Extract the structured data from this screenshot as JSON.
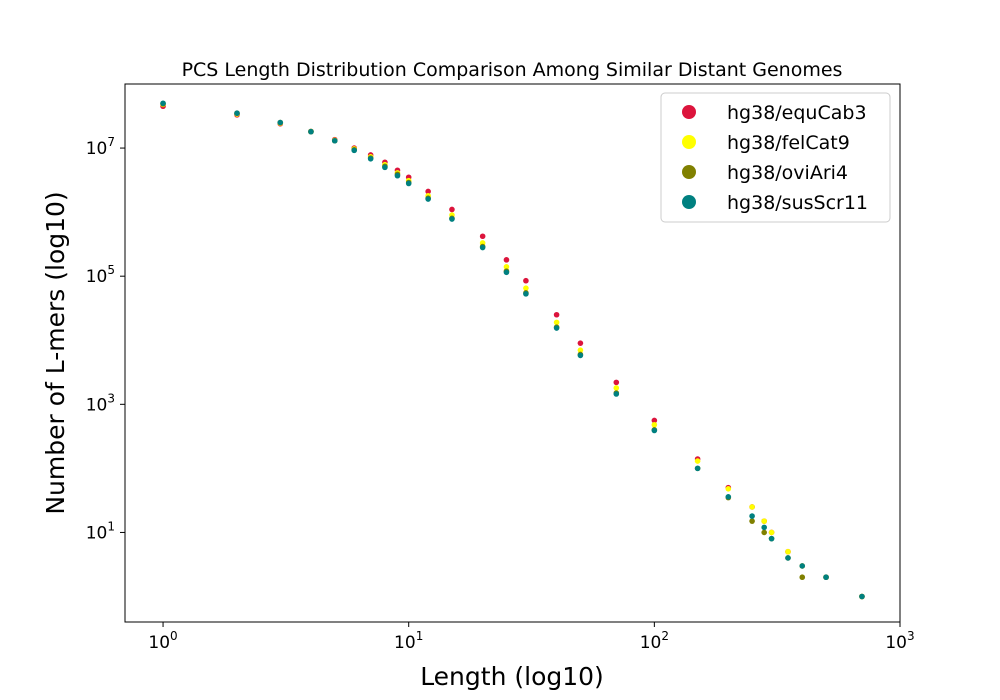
{
  "chart_data": {
    "type": "scatter",
    "title": "PCS Length Distribution Comparison Among Similar Distant Genomes",
    "xlabel": "Length (log10)",
    "ylabel": "Number of L-mers (log10)",
    "xscale": "log",
    "yscale": "log",
    "xlim": [
      0.7,
      1000
    ],
    "ylim": [
      0.4,
      100000000
    ],
    "xticks": [
      {
        "base": "10",
        "exp": "0",
        "value": 1
      },
      {
        "base": "10",
        "exp": "1",
        "value": 10
      },
      {
        "base": "10",
        "exp": "2",
        "value": 100
      },
      {
        "base": "10",
        "exp": "3",
        "value": 1000
      }
    ],
    "yticks": [
      {
        "base": "10",
        "exp": "1",
        "value": 10
      },
      {
        "base": "10",
        "exp": "3",
        "value": 1000
      },
      {
        "base": "10",
        "exp": "5",
        "value": 100000
      },
      {
        "base": "10",
        "exp": "7",
        "value": 10000000
      }
    ],
    "grid": false,
    "legend_position": "top-right",
    "series": [
      {
        "name": "hg38/equCab3",
        "color": "#dc143c",
        "x": [
          1,
          2,
          3,
          4,
          5,
          6,
          7,
          8,
          9,
          10,
          12,
          15,
          20,
          25,
          30,
          40,
          50,
          70,
          100,
          150,
          200,
          250,
          280,
          300,
          350,
          400,
          500,
          700
        ],
        "y": [
          45000000,
          33000000,
          24000000,
          18000000,
          13500000,
          10000000,
          7800000,
          6000000,
          4500000,
          3500000,
          2100000,
          1100000,
          420000,
          180000,
          85000,
          25000,
          9000,
          2200,
          560,
          140,
          50,
          25,
          15,
          10,
          5,
          3,
          2,
          1
        ]
      },
      {
        "name": "hg38/felCat9",
        "color": "#ffff00",
        "x": [
          1,
          2,
          3,
          4,
          5,
          6,
          7,
          8,
          9,
          10,
          12,
          15,
          20,
          25,
          30,
          40,
          50,
          70,
          100,
          150,
          200,
          250,
          280,
          300,
          350,
          400,
          500,
          700
        ],
        "y": [
          48000000,
          34000000,
          24500000,
          18000000,
          13200000,
          9700000,
          7300000,
          5500000,
          4100000,
          3100000,
          1800000,
          900000,
          330000,
          140000,
          65000,
          19000,
          7000,
          1800,
          480,
          130,
          48,
          25,
          15,
          10,
          5,
          3,
          2,
          1
        ]
      },
      {
        "name": "hg38/oviAri4",
        "color": "#808000",
        "x": [
          1,
          2,
          3,
          4,
          5,
          6,
          7,
          8,
          9,
          10,
          12,
          15,
          20,
          25,
          30,
          40,
          50,
          70,
          100,
          150,
          200,
          250,
          280,
          300,
          350,
          400,
          500,
          700
        ],
        "y": [
          49000000,
          35000000,
          25000000,
          18200000,
          13000000,
          9400000,
          7000000,
          5200000,
          3900000,
          2900000,
          1650000,
          800000,
          290000,
          120000,
          55000,
          16000,
          6000,
          1500,
          400,
          100,
          35,
          15,
          10,
          8,
          4,
          2,
          2,
          1
        ]
      },
      {
        "name": "hg38/susScr11",
        "color": "#008080",
        "x": [
          1,
          2,
          3,
          4,
          5,
          6,
          7,
          8,
          9,
          10,
          12,
          15,
          20,
          25,
          30,
          40,
          50,
          70,
          100,
          150,
          200,
          250,
          280,
          300,
          350,
          400,
          500,
          700
        ],
        "y": [
          50000000,
          35000000,
          25000000,
          18000000,
          13000000,
          9200000,
          6800000,
          5000000,
          3700000,
          2800000,
          1600000,
          780000,
          280000,
          115000,
          53000,
          15500,
          5800,
          1450,
          390,
          100,
          36,
          18,
          12,
          8,
          4,
          3,
          2,
          1
        ]
      }
    ]
  }
}
